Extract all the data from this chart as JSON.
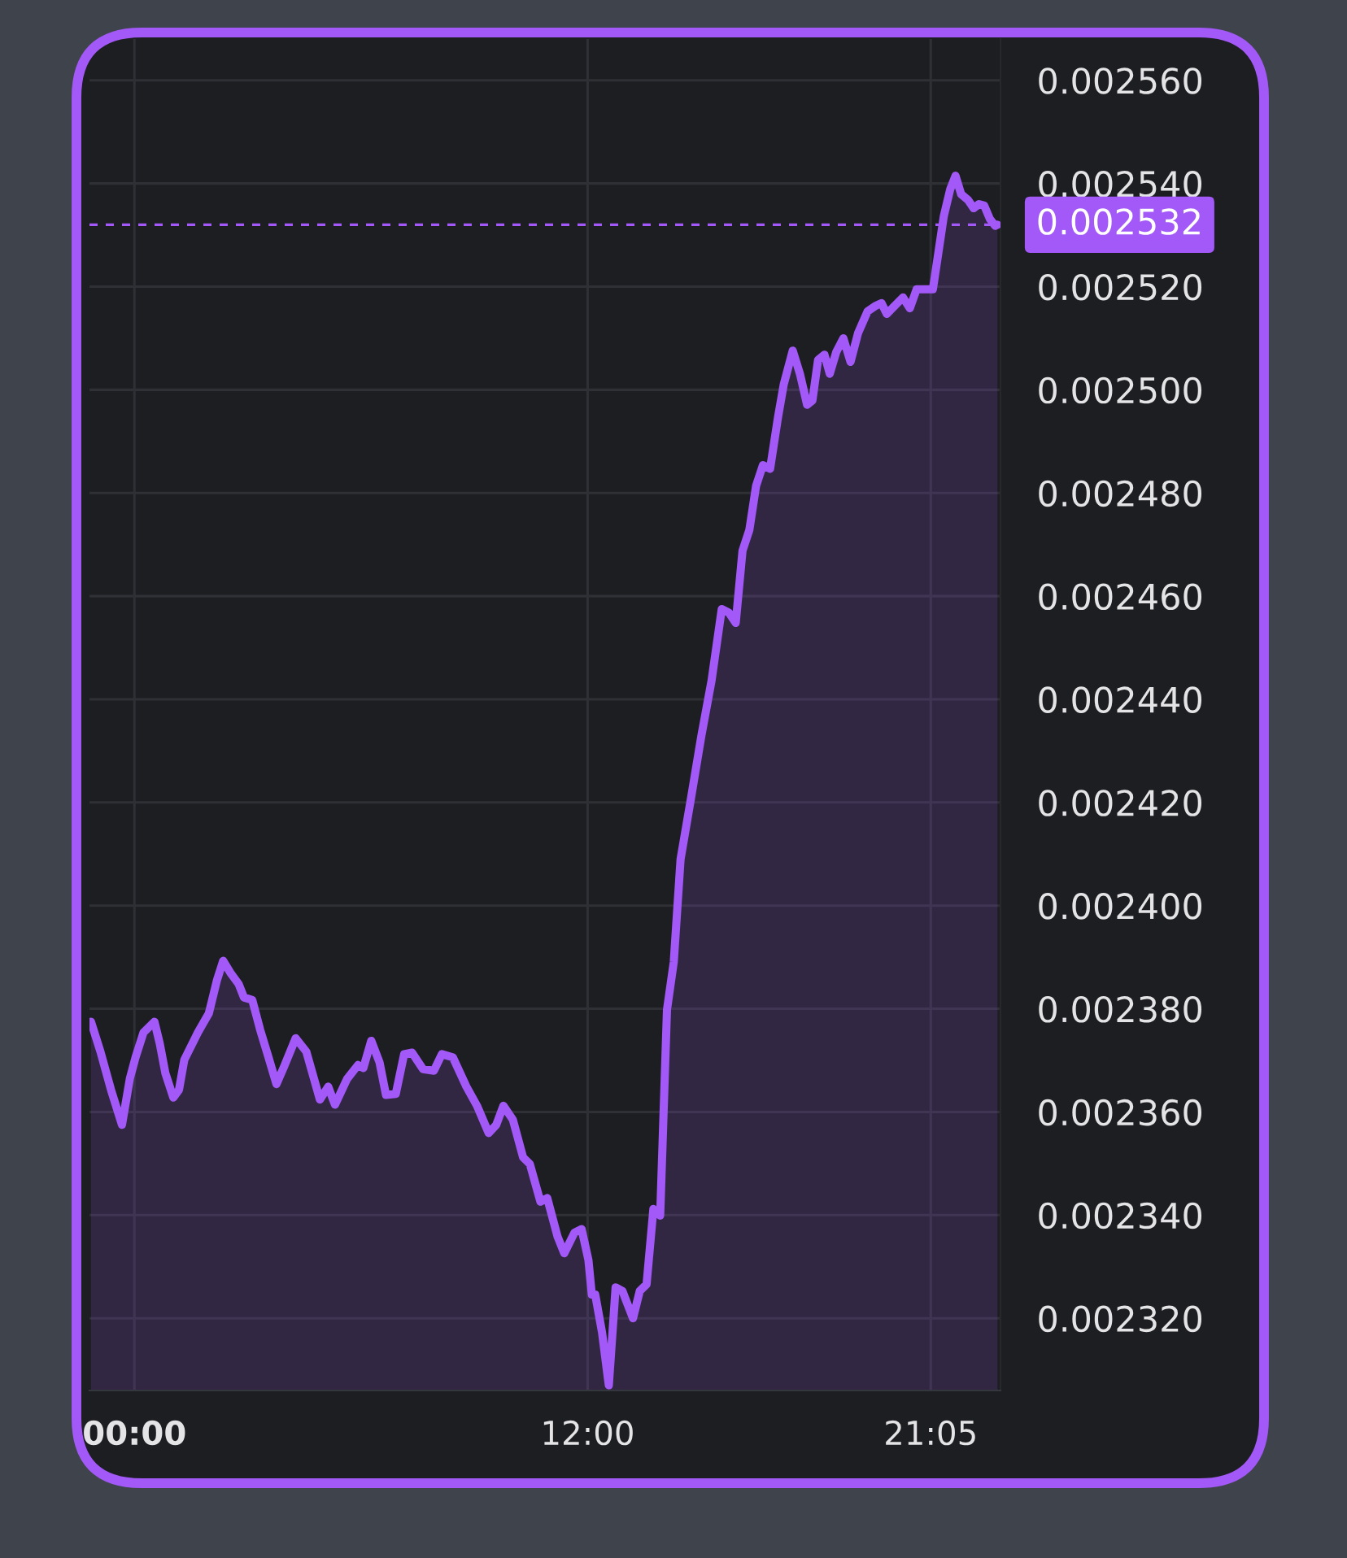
{
  "chart_data": {
    "type": "area",
    "x": [
      -1.15,
      -0.9,
      -0.62,
      -0.33,
      -0.12,
      0.03,
      0.24,
      0.53,
      0.67,
      0.82,
      1.03,
      1.18,
      1.32,
      1.68,
      1.97,
      2.18,
      2.35,
      2.54,
      2.76,
      2.9,
      3.12,
      3.33,
      3.55,
      3.76,
      3.98,
      4.27,
      4.55,
      4.91,
      5.13,
      5.31,
      5.63,
      5.92,
      6.06,
      6.27,
      6.49,
      6.66,
      6.92,
      7.14,
      7.35,
      7.64,
      7.93,
      8.14,
      8.43,
      8.79,
      9.07,
      9.38,
      9.58,
      9.77,
      10.02,
      10.29,
      10.47,
      10.75,
      10.93,
      11.2,
      11.38,
      11.65,
      11.84,
      12.02,
      12.11,
      12.2,
      12.38,
      12.56,
      12.74,
      12.92,
      13.2,
      13.38,
      13.56,
      13.74,
      13.92,
      14.1,
      14.28,
      14.46,
      14.74,
      15.01,
      15.28,
      15.55,
      15.74,
      15.92,
      16.1,
      16.28,
      16.46,
      16.64,
      16.83,
      17.04,
      17.19,
      17.43,
      17.62,
      17.81,
      17.95,
      18.1,
      18.27,
      18.41,
      18.58,
      18.77,
      18.96,
      19.16,
      19.41,
      19.63,
      19.78,
      19.92,
      20.13,
      20.35,
      20.53,
      20.71,
      21.14,
      21.28,
      21.43,
      21.6,
      21.74,
      21.89,
      22.07,
      22.22,
      22.36,
      22.5,
      22.65,
      22.79,
      22.85
    ],
    "series": [
      {
        "color": "#a259f7",
        "values": [
          0.0023775,
          0.0023717,
          0.0023643,
          0.0023575,
          0.0023665,
          0.0023706,
          0.0023754,
          0.0023775,
          0.0023733,
          0.0023675,
          0.0023628,
          0.0023643,
          0.0023701,
          0.0023754,
          0.0023791,
          0.0023854,
          0.0023893,
          0.002387,
          0.0023848,
          0.0023822,
          0.0023817,
          0.0023759,
          0.0023706,
          0.0023654,
          0.0023691,
          0.0023743,
          0.0023717,
          0.0023624,
          0.0023649,
          0.0023614,
          0.0023664,
          0.0023691,
          0.0023685,
          0.0023738,
          0.0023696,
          0.0023633,
          0.0023635,
          0.0023712,
          0.0023715,
          0.0023683,
          0.002368,
          0.0023712,
          0.0023706,
          0.0023649,
          0.0023612,
          0.0023559,
          0.0023575,
          0.0023612,
          0.0023585,
          0.0023512,
          0.0023499,
          0.0023426,
          0.0023433,
          0.0023359,
          0.0023326,
          0.0023366,
          0.0023373,
          0.0023313,
          0.0023246,
          0.0023246,
          0.0023173,
          0.002307,
          0.002326,
          0.0023253,
          0.00232,
          0.0023253,
          0.0023266,
          0.0023412,
          0.0023399,
          0.0023798,
          0.0023891,
          0.002409,
          0.002421,
          0.0024329,
          0.0024436,
          0.0024575,
          0.0024568,
          0.0024548,
          0.0024688,
          0.0024728,
          0.0024814,
          0.0024854,
          0.0024847,
          0.0024947,
          0.002501,
          0.0025076,
          0.0025031,
          0.0024971,
          0.0024979,
          0.0025058,
          0.0025068,
          0.0025031,
          0.0025073,
          0.00251,
          0.0025054,
          0.002511,
          0.0025152,
          0.0025163,
          0.0025168,
          0.0025147,
          0.0025163,
          0.0025179,
          0.0025158,
          0.0025195,
          0.0025195,
          0.0025263,
          0.0025337,
          0.0025389,
          0.0025415,
          0.0025379,
          0.0025368,
          0.0025352,
          0.002536,
          0.0025357,
          0.0025331,
          0.0025318,
          0.002532
        ]
      }
    ],
    "xlim": [
      -1.19,
      22.93
    ],
    "xticks": [
      {
        "value": 0,
        "label": "00:00"
      },
      {
        "value": 12,
        "label": "12:00"
      },
      {
        "value": 21.083,
        "label": "21:05"
      }
    ],
    "ylim": [
      0.002306,
      0.002568
    ],
    "yticks": [
      {
        "value": 0.00232,
        "label": "0.002320"
      },
      {
        "value": 0.00234,
        "label": "0.002340"
      },
      {
        "value": 0.00236,
        "label": "0.002360"
      },
      {
        "value": 0.00238,
        "label": "0.002380"
      },
      {
        "value": 0.0024,
        "label": "0.002400"
      },
      {
        "value": 0.00242,
        "label": "0.002420"
      },
      {
        "value": 0.00244,
        "label": "0.002440"
      },
      {
        "value": 0.00246,
        "label": "0.002460"
      },
      {
        "value": 0.00248,
        "label": "0.002480"
      },
      {
        "value": 0.0025,
        "label": "0.002500"
      },
      {
        "value": 0.00252,
        "label": "0.002520"
      },
      {
        "value": 0.00254,
        "label": "0.002540"
      },
      {
        "value": 0.00256,
        "label": "0.002560"
      }
    ],
    "grid": true,
    "ref_lines": [
      {
        "axis": "y",
        "value": 0.002532,
        "label": "0.002532",
        "color": "#a259f7",
        "line_style": "dashed"
      }
    ]
  }
}
